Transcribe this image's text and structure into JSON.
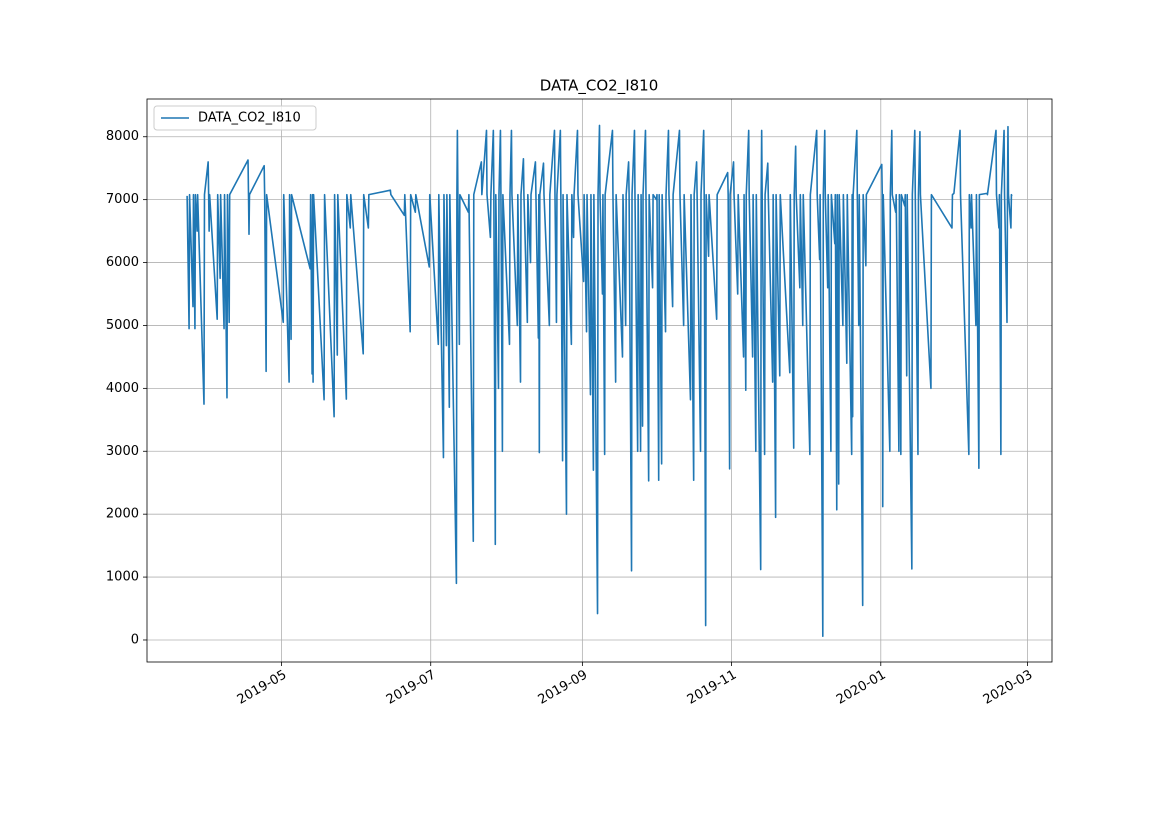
{
  "chart_data": {
    "type": "line",
    "title": "DATA_CO2_I810",
    "x": [
      17978.4,
      17979.2,
      17979.4,
      17980.8,
      17981.0,
      17981.6,
      17981.8,
      17982.5,
      17982.7,
      17985.3,
      17985.5,
      17987.0,
      17987.2,
      17987.4,
      17987.6,
      17990.7,
      17990.9,
      17991.9,
      17992.1,
      17993.5,
      17993.7,
      17994.7,
      17994.9,
      17995.6,
      17995.8,
      18003.3,
      18003.5,
      18003.7,
      18003.9,
      18009.9,
      18010.1,
      18010.7,
      18010.9,
      18017.7,
      18017.9,
      18020.1,
      18020.3,
      18020.9,
      18021.1,
      18028.7,
      18028.9,
      18029.5,
      18029.7,
      18029.9,
      18030.1,
      18034.4,
      18034.6,
      18038.5,
      18038.7,
      18039.8,
      18040.0,
      18043.5,
      18043.7,
      18045.1,
      18045.3,
      18050.4,
      18050.6,
      18052.5,
      18052.7,
      18061.5,
      18061.7,
      18067.2,
      18067.4,
      18069.6,
      18069.8,
      18071.7,
      18071.9,
      18077.4,
      18077.6,
      18081.1,
      18081.3,
      18083.2,
      18083.4,
      18084.4,
      18084.6,
      18085.6,
      18085.8,
      18088.5,
      18088.7,
      18088.9,
      18089.1,
      18089.7,
      18089.9,
      18093.4,
      18093.6,
      18095.4,
      18095.6,
      18098.7,
      18098.9,
      18100.8,
      18101.0,
      18102.4,
      18102.6,
      18103.6,
      18103.8,
      18104.4,
      18104.6,
      18105.7,
      18105.9,
      18106.5,
      18106.7,
      18107.3,
      18107.5,
      18110.2,
      18110.4,
      18111.0,
      18111.2,
      18113.4,
      18113.6,
      18114.7,
      18114.9,
      18115.9,
      18116.1,
      18117.5,
      18117.7,
      18118.8,
      18119.0,
      18120.8,
      18121.0,
      18122.0,
      18122.2,
      18122.4,
      18122.6,
      18124.1,
      18124.3,
      18126.5,
      18126.7,
      18128.6,
      18128.8,
      18129.4,
      18129.6,
      18131.0,
      18131.2,
      18131.9,
      18132.1,
      18133.5,
      18133.7,
      18135.5,
      18135.7,
      18136.4,
      18136.6,
      18138.0,
      18138.2,
      18140.5,
      18140.7,
      18141.7,
      18141.9,
      18143.3,
      18143.5,
      18144.5,
      18144.7,
      18146.2,
      18146.4,
      18147.0,
      18147.2,
      18148.2,
      18148.4,
      18149.1,
      18149.3,
      18152.3,
      18152.5,
      18153.6,
      18153.8,
      18156.4,
      18156.6,
      18157.7,
      18157.9,
      18158.9,
      18159.1,
      18160.1,
      18160.3,
      18161.3,
      18161.5,
      18162.6,
      18162.8,
      18163.8,
      18164.0,
      18164.6,
      18164.8,
      18165.8,
      18166.0,
      18167.1,
      18167.3,
      18168.7,
      18168.9,
      18170.3,
      18170.5,
      18171.2,
      18171.4,
      18172.4,
      18172.6,
      18174.0,
      18174.2,
      18175.2,
      18175.4,
      18176.9,
      18177.1,
      18179.7,
      18179.9,
      18181.4,
      18181.6,
      18184.2,
      18184.4,
      18185.5,
      18185.7,
      18186.7,
      18186.9,
      18188.3,
      18188.5,
      18189.6,
      18189.8,
      18190.4,
      18190.6,
      18191.6,
      18191.8,
      18194.9,
      18195.1,
      18199.4,
      18199.6,
      18200.2,
      18200.4,
      18201.8,
      18202.0,
      18203.5,
      18203.7,
      18205.9,
      18206.1,
      18206.8,
      18207.0,
      18208.0,
      18208.2,
      18209.6,
      18209.8,
      18210.9,
      18211.1,
      18212.9,
      18213.1,
      18213.3,
      18213.5,
      18214.5,
      18214.7,
      18215.8,
      18216.0,
      18217.8,
      18218.0,
      18219.0,
      18219.2,
      18220.7,
      18220.9,
      18224.8,
      18225.0,
      18226.4,
      18226.6,
      18227.2,
      18227.4,
      18228.9,
      18229.1,
      18230.1,
      18230.3,
      18233.0,
      18233.2,
      18235.8,
      18236.0,
      18237.0,
      18237.2,
      18238.3,
      18238.5,
      18239.1,
      18239.3,
      18240.3,
      18240.5,
      18241.6,
      18241.8,
      18243.2,
      18243.4,
      18244.0,
      18244.2,
      18244.8,
      18245.0,
      18246.5,
      18246.7,
      18248.1,
      18248.3,
      18250.1,
      18250.3,
      18250.5,
      18250.7,
      18252.2,
      18252.4,
      18253.0,
      18253.2,
      18254.6,
      18254.8,
      18255.9,
      18256.1,
      18262.4,
      18262.6,
      18262.8,
      18263.0,
      18265.7,
      18265.9,
      18266.5,
      18266.7,
      18268.1,
      18268.3,
      18269.4,
      18269.6,
      18270.2,
      18270.4,
      18271.8,
      18272.0,
      18272.6,
      18272.8,
      18274.7,
      18274.9,
      18275.9,
      18276.1,
      18277.2,
      18277.4,
      18278.0,
      18278.2,
      18282.5,
      18282.7,
      18291.1,
      18291.3,
      18291.9,
      18294.4,
      18294.6,
      18298.0,
      18298.2,
      18298.9,
      18299.1,
      18300.9,
      18301.1,
      18302.1,
      18302.3,
      18305.4,
      18305.6,
      18309.1,
      18309.3,
      18310.3,
      18310.5,
      18311.1,
      18311.3,
      18312.4,
      18312.6,
      18313.6,
      18313.8,
      18314.0,
      18314.2,
      18315.2,
      18315.4,
      18315.6
    ],
    "series": [
      {
        "name": "DATA_CO2_I810",
        "color": "#1f77b4",
        "values": [
          7060,
          4950,
          7080,
          5300,
          7080,
          4950,
          7080,
          6500,
          7080,
          3750,
          7080,
          7600,
          7080,
          6500,
          7080,
          5100,
          7080,
          5750,
          7080,
          4950,
          7080,
          3850,
          7080,
          5050,
          7080,
          7630,
          7080,
          6450,
          7080,
          7540,
          7080,
          4270,
          7080,
          5050,
          7080,
          4100,
          7080,
          4780,
          7080,
          5900,
          7080,
          4230,
          7080,
          4100,
          7080,
          3820,
          7080,
          3550,
          7080,
          4530,
          7080,
          3830,
          7080,
          6550,
          7080,
          4550,
          7080,
          6550,
          7080,
          7150,
          7080,
          6750,
          7080,
          4900,
          7080,
          6800,
          7080,
          5930,
          7080,
          4700,
          7080,
          2900,
          7080,
          4680,
          7080,
          3700,
          7080,
          900,
          7080,
          8100,
          7080,
          4700,
          7080,
          6800,
          7080,
          1570,
          7080,
          7600,
          7080,
          8100,
          7080,
          6400,
          7080,
          8100,
          7080,
          1520,
          7080,
          4000,
          7080,
          8100,
          7080,
          3000,
          7080,
          4700,
          7080,
          8100,
          7080,
          5000,
          7080,
          4100,
          7080,
          7650,
          7080,
          5050,
          7080,
          6000,
          7080,
          7600,
          7080,
          4800,
          7080,
          2980,
          7080,
          7580,
          7080,
          5000,
          7080,
          8100,
          7080,
          5050,
          7080,
          8100,
          7080,
          2850,
          7080,
          2000,
          7080,
          4700,
          7080,
          6400,
          7080,
          8100,
          7080,
          5700,
          7080,
          4900,
          7080,
          3900,
          7080,
          2700,
          7080,
          420,
          7080,
          8180,
          7080,
          5500,
          7080,
          2950,
          7080,
          8100,
          7080,
          4100,
          7080,
          4500,
          7080,
          5000,
          7080,
          7600,
          7080,
          1100,
          7080,
          8100,
          7080,
          3000,
          7080,
          3000,
          7080,
          3400,
          7080,
          8100,
          7080,
          2530,
          7080,
          5600,
          7080,
          7000,
          7080,
          2540,
          7080,
          2800,
          7080,
          4900,
          7080,
          8100,
          7080,
          5300,
          7080,
          8100,
          7080,
          5000,
          7080,
          3820,
          7080,
          2540,
          7080,
          7600,
          7080,
          3000,
          7080,
          8100,
          7080,
          230,
          7080,
          6100,
          7080,
          5100,
          7080,
          7430,
          7080,
          2720,
          7080,
          7600,
          7080,
          5500,
          7080,
          4500,
          7080,
          3970,
          7080,
          8100,
          7080,
          4500,
          7080,
          3000,
          7080,
          1120,
          7080,
          8100,
          7080,
          2950,
          7080,
          7580,
          7080,
          4100,
          7080,
          1950,
          7080,
          4200,
          7080,
          4250,
          7080,
          3050,
          7080,
          7850,
          7080,
          5600,
          7080,
          5000,
          7080,
          2950,
          7080,
          8100,
          7080,
          6050,
          7080,
          60,
          7080,
          8100,
          7080,
          5600,
          7080,
          3000,
          7080,
          6300,
          7080,
          2070,
          7080,
          2480,
          7080,
          5000,
          7080,
          4400,
          7080,
          2950,
          7080,
          3550,
          7080,
          8100,
          7080,
          5000,
          7080,
          550,
          7080,
          5950,
          7080,
          7560,
          7080,
          2120,
          7080,
          3000,
          7080,
          8100,
          7080,
          6800,
          7080,
          3000,
          7080,
          2950,
          7080,
          6900,
          7080,
          4200,
          7080,
          1130,
          7080,
          8100,
          7080,
          2950,
          7080,
          8080,
          7080,
          4000,
          7080,
          6550,
          7080,
          7100,
          8100,
          7080,
          2950,
          7080,
          6550,
          7080,
          5000,
          7080,
          2730,
          7080,
          7100,
          7080,
          8100,
          7080,
          6550,
          7080,
          2950,
          7080,
          8100,
          7080,
          5050,
          7080,
          8160,
          7080,
          6550,
          7080,
          7060
        ]
      }
    ],
    "xlim": [
      17962,
      18332
    ],
    "ylim": [
      -350,
      8600
    ],
    "xticks": [
      {
        "value": 18017,
        "label": "2019-05"
      },
      {
        "value": 18078,
        "label": "2019-07"
      },
      {
        "value": 18140,
        "label": "2019-09"
      },
      {
        "value": 18201,
        "label": "2019-11"
      },
      {
        "value": 18262,
        "label": "2020-01"
      },
      {
        "value": 18322,
        "label": "2020-03"
      }
    ],
    "yticks": [
      0,
      1000,
      2000,
      3000,
      4000,
      5000,
      6000,
      7000,
      8000
    ],
    "grid": true,
    "legend": "upper left"
  }
}
